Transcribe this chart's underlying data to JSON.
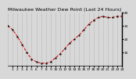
{
  "title": "Milwaukee Weather Dew Point (Last 24 Hours)",
  "x_values": [
    0,
    1,
    2,
    3,
    4,
    5,
    6,
    7,
    8,
    9,
    10,
    11,
    12,
    13,
    14,
    15,
    16,
    17,
    18,
    19,
    20,
    21,
    22,
    23,
    24
  ],
  "y_values": [
    30,
    27,
    22,
    16,
    10,
    5,
    3,
    2,
    2,
    3,
    6,
    9,
    13,
    17,
    20,
    23,
    27,
    31,
    34,
    36,
    37,
    36,
    36,
    37,
    37
  ],
  "line_color": "#cc0000",
  "marker_color": "#111111",
  "bg_color": "#d8d8d8",
  "plot_bg_color": "#d8d8d8",
  "grid_color": "#888888",
  "ylim": [
    0,
    40
  ],
  "yticks": [
    10,
    20,
    30,
    40
  ],
  "xlim": [
    0,
    24
  ],
  "xticks": [
    1,
    2,
    3,
    4,
    5,
    6,
    7,
    8,
    9,
    10,
    11,
    12,
    13,
    14,
    15,
    16,
    17,
    18,
    19,
    20,
    21,
    22,
    23,
    24
  ],
  "title_fontsize": 4.5,
  "tick_fontsize": 3.2,
  "linewidth": 0.7,
  "markersize": 1.4,
  "linestyle": "--"
}
